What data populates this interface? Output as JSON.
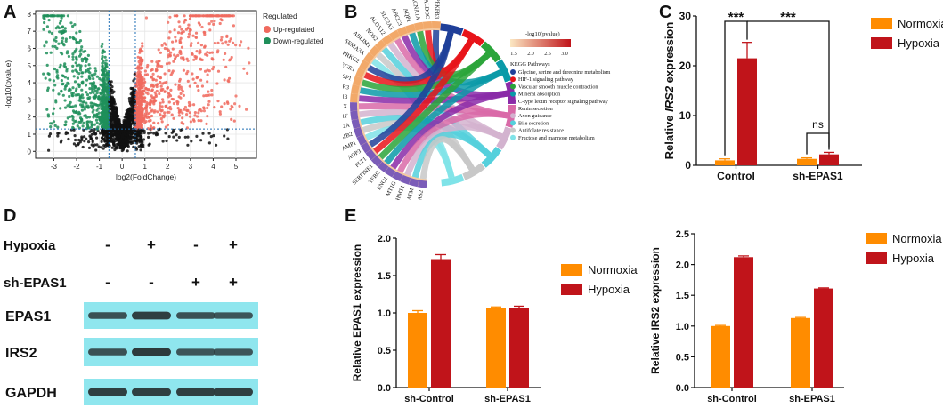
{
  "panels": {
    "A": "A",
    "B": "B",
    "C": "C",
    "D": "D",
    "E": "E"
  },
  "colors": {
    "normoxia": "#ff8c00",
    "hypoxia": "#c0141a",
    "up": "#f06a5e",
    "down": "#1f8f5a",
    "ns": "#111111",
    "blotBg": "#8fe6ee",
    "blotBand": "#2d3a3c"
  },
  "chart_data": [
    {
      "id": "A",
      "type": "scatter",
      "title": "",
      "xlabel": "log2(FoldChange)",
      "ylabel": "-log10(pvalue)",
      "xlim": [
        -3.8,
        5.9
      ],
      "ylim": [
        -0.4,
        8.2
      ],
      "xticks": [
        "-3",
        "-2",
        "-1",
        "0",
        "1",
        "2",
        "3",
        "4",
        "5"
      ],
      "yticks": [
        "0",
        "1",
        "2",
        "3",
        "4",
        "5",
        "6",
        "7",
        "8"
      ],
      "thresholds": {
        "log2fc": [
          -0.58,
          0.58
        ],
        "pvalue_log10": 1.3
      },
      "legend": {
        "title": "Regulated",
        "entries": [
          "Up-regulated",
          "Down-regulated"
        ],
        "placement": "right"
      }
    },
    {
      "id": "B",
      "type": "other",
      "chart_kind": "chord",
      "colorbar": {
        "title": "-log10(pvalue)",
        "ticks": [
          "1.5",
          "2.0",
          "2.5",
          "3.0"
        ]
      },
      "legend_title": "KEGG Pathways",
      "pathways": [
        "Glycine, serine and threonine metabolism",
        "HIF-1 signaling pathway",
        "Vascular smooth muscle contraction",
        "Mineral absorption",
        "C-type lectin receptor signaling pathway",
        "Renin secretion",
        "Axon guidance",
        "Bile secretion",
        "Antifolate resistance",
        "Fructose and mannose metabolism"
      ],
      "pathway_colors": [
        "#1f3f99",
        "#e8141a",
        "#2aa53a",
        "#0a9aa8",
        "#8a2aa8",
        "#d96aa8",
        "#d3b3cf",
        "#55d0dc",
        "#c8c8c8",
        "#7fe3e8"
      ],
      "genes": [
        "PFKFB3",
        "ALDOC",
        "CACNA1A",
        "AQP1",
        "ABCC3",
        "SLC2A3",
        "ALOX12",
        "NOS2",
        "ABLIM1",
        "SEMA3A",
        "PRKG2",
        "EGR1",
        "LSP1",
        "EGR3",
        "MAPK13",
        "MT1X",
        "MT1F",
        "MT2A",
        "KCNMB2",
        "RAMP1",
        "AQP3",
        "FLT1",
        "SERPINE1",
        "TFRC",
        "ENO1",
        "MT1G",
        "SHMT1",
        "GATM",
        "ALAS2"
      ]
    },
    {
      "id": "C",
      "type": "bar",
      "categories": [
        "Control",
        "sh-EPAS1"
      ],
      "series": [
        {
          "name": "Normoxia",
          "values": [
            1.0,
            1.3
          ],
          "errors": [
            0.3,
            0.2
          ]
        },
        {
          "name": "Hypoxia",
          "values": [
            21.5,
            2.2
          ],
          "errors": [
            3.2,
            0.4
          ]
        }
      ],
      "ylabel": "Relative IRS2 expression",
      "ylim": [
        0,
        30
      ],
      "yticks": [
        "0",
        "10",
        "20",
        "30"
      ],
      "significance": [
        "***",
        "***",
        "ns"
      ]
    },
    {
      "id": "E1",
      "type": "bar",
      "categories": [
        "sh-Control",
        "sh-EPAS1"
      ],
      "series": [
        {
          "name": "Normoxia",
          "values": [
            1.0,
            1.06
          ],
          "errors": [
            0.03,
            0.02
          ]
        },
        {
          "name": "Hypoxia",
          "values": [
            1.72,
            1.06
          ],
          "errors": [
            0.06,
            0.03
          ]
        }
      ],
      "ylabel": "Relative EPAS1 expression",
      "ylim": [
        0,
        2.0
      ],
      "yticks": [
        "0.0",
        "0.5",
        "1.0",
        "1.5",
        "2.0"
      ]
    },
    {
      "id": "E2",
      "type": "bar",
      "categories": [
        "sh-Control",
        "sh-EPAS1"
      ],
      "series": [
        {
          "name": "Normoxia",
          "values": [
            1.0,
            1.13
          ],
          "errors": [
            0.01,
            0.01
          ]
        },
        {
          "name": "Hypoxia",
          "values": [
            2.12,
            1.61
          ],
          "errors": [
            0.02,
            0.01
          ]
        }
      ],
      "ylabel": "Relative IRS2 expression",
      "ylim": [
        0,
        2.5
      ],
      "yticks": [
        "0.0",
        "0.5",
        "1.0",
        "1.5",
        "2.0",
        "2.5"
      ]
    }
  ],
  "blot": {
    "row_labels": [
      "Hypoxia",
      "sh-EPAS1"
    ],
    "conditions": [
      {
        "hypoxia": "-",
        "sh": "-"
      },
      {
        "hypoxia": "+",
        "sh": "-"
      },
      {
        "hypoxia": "-",
        "sh": "+"
      },
      {
        "hypoxia": "+",
        "sh": "+"
      }
    ],
    "bands": [
      {
        "name": "EPAS1",
        "intensity": [
          0.7,
          0.95,
          0.7,
          0.65
        ]
      },
      {
        "name": "IRS2",
        "intensity": [
          0.7,
          1.0,
          0.65,
          0.65
        ]
      },
      {
        "name": "GAPDH",
        "intensity": [
          0.95,
          0.95,
          0.95,
          0.95
        ]
      }
    ]
  }
}
